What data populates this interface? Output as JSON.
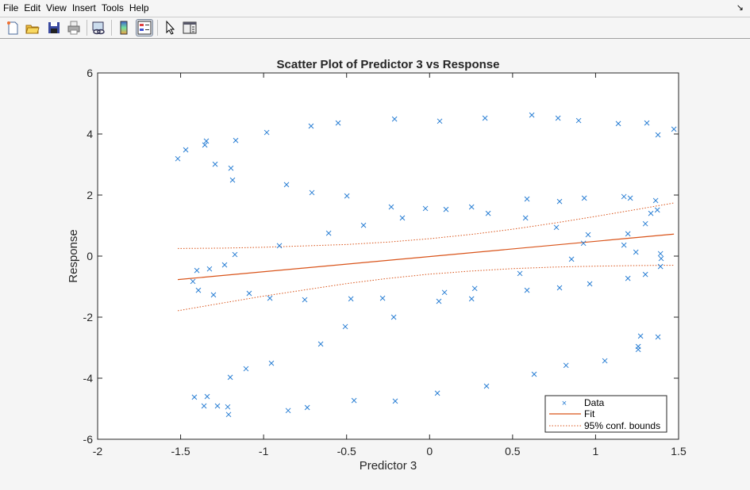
{
  "menu": [
    "File",
    "Edit",
    "View",
    "Insert",
    "Tools",
    "Help"
  ],
  "toolbar": [
    "new-figure",
    "open-file",
    "save",
    "print",
    "link-data",
    "insert-colorbar",
    "insert-legend",
    "edit-plot",
    "property-inspector"
  ],
  "colors": {
    "data": "#2a7fd4",
    "fit": "#d95319"
  },
  "chart_data": {
    "type": "scatter",
    "title": "Scatter Plot of Predictor 3 vs Response",
    "xlabel": "Predictor 3",
    "ylabel": "Response",
    "xlim": [
      -2,
      1.5
    ],
    "ylim": [
      -6,
      6
    ],
    "xticks": [
      -2,
      -1.5,
      -1,
      -0.5,
      0,
      0.5,
      1,
      1.5
    ],
    "xtick_labels": [
      "-2",
      "-1.5",
      "-1",
      "-0.5",
      "0",
      "0.5",
      "1",
      "1.5"
    ],
    "yticks": [
      -6,
      -4,
      -2,
      0,
      2,
      4,
      6
    ],
    "ytick_labels": [
      "-6",
      "-4",
      "-2",
      "0",
      "2",
      "4",
      "6"
    ],
    "legend": {
      "placement": "bottom-right",
      "entries": [
        "Data",
        "Fit",
        "95% conf. bounds"
      ]
    },
    "data": [
      [
        -1.517,
        3.19
      ],
      [
        -1.469,
        3.48
      ],
      [
        -1.345,
        3.77
      ],
      [
        -1.354,
        3.64
      ],
      [
        -1.292,
        3.01
      ],
      [
        -1.197,
        2.88
      ],
      [
        -1.187,
        2.49
      ],
      [
        -1.168,
        3.79
      ],
      [
        -0.981,
        4.05
      ],
      [
        -0.862,
        2.34
      ],
      [
        -0.714,
        4.26
      ],
      [
        -0.709,
        2.08
      ],
      [
        -0.551,
        4.36
      ],
      [
        -0.498,
        1.97
      ],
      [
        -0.608,
        0.75
      ],
      [
        -0.398,
        1.01
      ],
      [
        -0.211,
        4.49
      ],
      [
        -0.231,
        1.61
      ],
      [
        -0.164,
        1.25
      ],
      [
        -0.025,
        1.56
      ],
      [
        0.061,
        4.42
      ],
      [
        0.099,
        1.53
      ],
      [
        0.253,
        1.61
      ],
      [
        0.334,
        4.52
      ],
      [
        0.353,
        1.4
      ],
      [
        0.616,
        4.62
      ],
      [
        0.587,
        1.87
      ],
      [
        0.578,
        1.25
      ],
      [
        0.774,
        4.52
      ],
      [
        0.783,
        1.79
      ],
      [
        0.764,
        0.94
      ],
      [
        0.898,
        4.44
      ],
      [
        0.932,
        1.9
      ],
      [
        0.955,
        0.7
      ],
      [
        0.927,
        0.42
      ],
      [
        0.855,
        -0.1
      ],
      [
        1.137,
        4.34
      ],
      [
        1.171,
        1.95
      ],
      [
        1.209,
        1.9
      ],
      [
        1.195,
        0.73
      ],
      [
        1.171,
        0.36
      ],
      [
        1.243,
        0.13
      ],
      [
        1.309,
        4.36
      ],
      [
        1.376,
        3.97
      ],
      [
        1.472,
        4.16
      ],
      [
        1.362,
        1.82
      ],
      [
        1.372,
        1.51
      ],
      [
        1.333,
        1.4
      ],
      [
        1.3,
        1.06
      ],
      [
        1.391,
        0.08
      ],
      [
        1.395,
        -0.08
      ],
      [
        1.391,
        -0.34
      ],
      [
        1.3,
        -0.6
      ],
      [
        1.195,
        -0.73
      ],
      [
        0.965,
        -0.91
      ],
      [
        0.783,
        -1.04
      ],
      [
        0.587,
        -1.12
      ],
      [
        0.544,
        -0.57
      ],
      [
        0.272,
        -1.06
      ],
      [
        0.253,
        -1.4
      ],
      [
        0.09,
        -1.19
      ],
      [
        0.056,
        -1.48
      ],
      [
        -0.283,
        -1.38
      ],
      [
        -0.474,
        -1.4
      ],
      [
        -0.752,
        -1.43
      ],
      [
        -0.962,
        -1.38
      ],
      [
        -1.087,
        -1.22
      ],
      [
        -1.302,
        -1.27
      ],
      [
        -1.393,
        -1.12
      ],
      [
        -1.426,
        -0.83
      ],
      [
        -1.402,
        -0.47
      ],
      [
        -1.326,
        -0.42
      ],
      [
        -1.235,
        -0.29
      ],
      [
        -1.173,
        0.05
      ],
      [
        -0.905,
        0.34
      ],
      [
        -0.508,
        -2.31
      ],
      [
        -0.216,
        -2.0
      ],
      [
        -0.656,
        -2.88
      ],
      [
        -0.953,
        -3.51
      ],
      [
        -1.106,
        -3.69
      ],
      [
        -1.201,
        -3.97
      ],
      [
        -1.417,
        -4.62
      ],
      [
        -1.34,
        -4.6
      ],
      [
        -1.359,
        -4.91
      ],
      [
        -1.278,
        -4.91
      ],
      [
        -1.216,
        -4.94
      ],
      [
        -1.211,
        -5.19
      ],
      [
        -0.852,
        -5.06
      ],
      [
        -0.737,
        -4.96
      ],
      [
        -0.455,
        -4.73
      ],
      [
        -0.207,
        -4.75
      ],
      [
        0.047,
        -4.49
      ],
      [
        0.343,
        -4.26
      ],
      [
        0.63,
        -3.87
      ],
      [
        0.822,
        -3.58
      ],
      [
        1.056,
        -3.43
      ],
      [
        1.271,
        -2.62
      ],
      [
        1.257,
        -2.96
      ],
      [
        1.257,
        -3.06
      ],
      [
        1.376,
        -2.65
      ]
    ],
    "fit": {
      "x": [
        -1.517,
        1.472
      ],
      "y": [
        -0.77,
        0.72
      ]
    },
    "conf_bounds": {
      "x": [
        -1.517,
        -1.25,
        -1.0,
        -0.5,
        -0.25,
        0,
        0.25,
        0.5,
        0.75,
        1.0,
        1.25,
        1.472
      ],
      "upper": [
        0.25,
        0.26,
        0.29,
        0.38,
        0.46,
        0.57,
        0.71,
        0.88,
        1.08,
        1.3,
        1.53,
        1.74
      ],
      "lower": [
        -1.79,
        -1.54,
        -1.31,
        -0.9,
        -0.73,
        -0.59,
        -0.49,
        -0.41,
        -0.36,
        -0.33,
        -0.31,
        -0.3
      ]
    }
  }
}
